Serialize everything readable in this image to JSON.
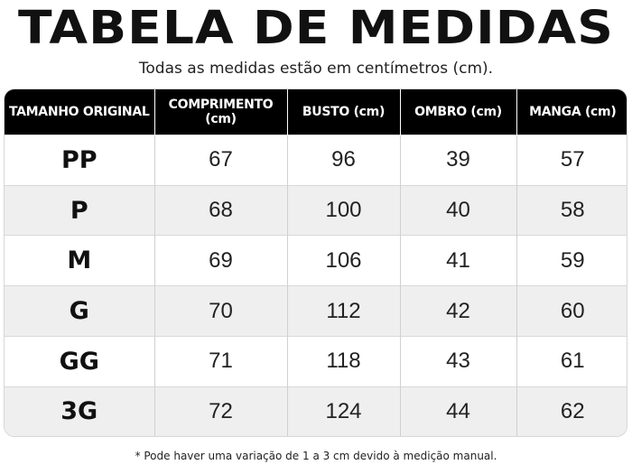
{
  "title": "TABELA DE MEDIDAS",
  "subtitle": "Todas as medidas estão em centímetros (cm).",
  "table": {
    "headers": [
      "TAMANHO ORIGINAL",
      "COMPRIMENTO (cm)",
      "BUSTO (cm)",
      "OMBRO (cm)",
      "MANGA (cm)"
    ],
    "rows": [
      [
        "PP",
        "67",
        "96",
        "39",
        "57"
      ],
      [
        "P",
        "68",
        "100",
        "40",
        "58"
      ],
      [
        "M",
        "69",
        "106",
        "41",
        "59"
      ],
      [
        "G",
        "70",
        "112",
        "42",
        "60"
      ],
      [
        "GG",
        "71",
        "118",
        "43",
        "61"
      ],
      [
        "3G",
        "72",
        "124",
        "44",
        "62"
      ]
    ]
  },
  "footnote": "* Pode haver uma variação de 1 a 3 cm devido à medição manual."
}
